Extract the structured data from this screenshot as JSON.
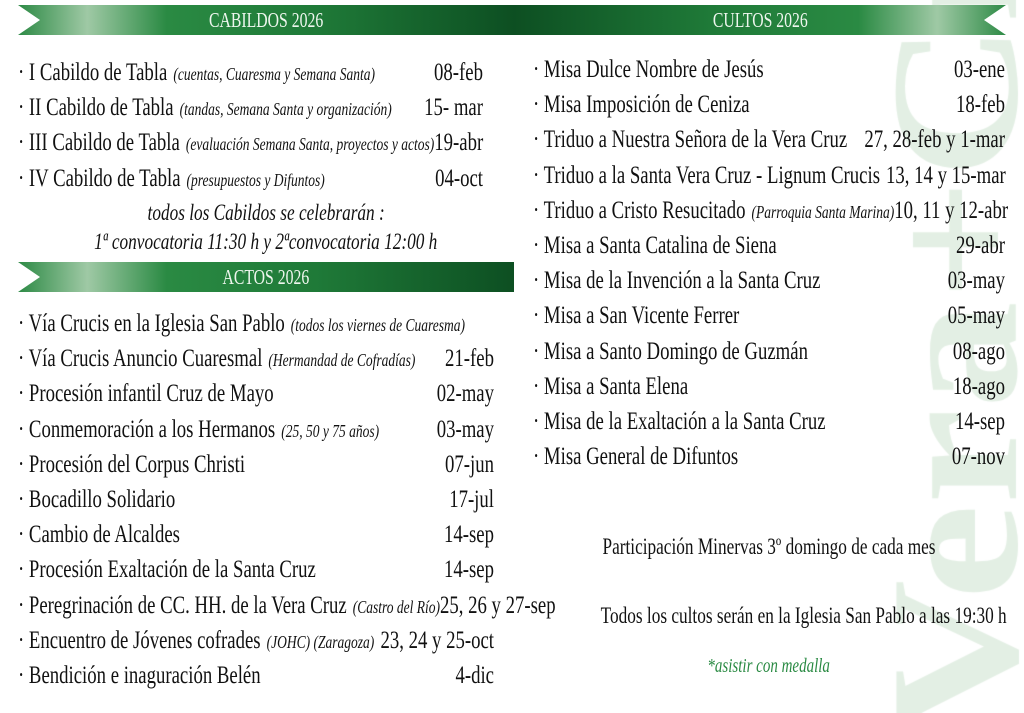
{
  "watermark": "Vera+Cruz",
  "colors": {
    "banner_green": "#1f7a38",
    "watermark": "#e3efe4",
    "accent_note": "#2a8a43"
  },
  "cabildos": {
    "title": "CABILDOS 2026",
    "items": [
      {
        "name": "· I Cabildo de Tabla",
        "detail": "(cuentas, Cuaresma y Semana Santa)",
        "date": "08-feb"
      },
      {
        "name": "· II Cabildo de Tabla",
        "detail": "(tandas, Semana Santa  y organización)",
        "date": "15- mar"
      },
      {
        "name": "· III Cabildo de Tabla",
        "detail": "(evaluación Semana Santa, proyectos y actos)",
        "date": "19-abr"
      },
      {
        "name": "· IV Cabildo de Tabla",
        "detail": "(presupuestos y Difuntos)",
        "date": "04-oct"
      }
    ],
    "note1": "todos los Cabildos se celebrarán :",
    "note2": "1ª convocatoria 11:30 h y 2ªconvocatoria 12:00 h"
  },
  "actos": {
    "title": "ACTOS 2026",
    "items": [
      {
        "name": "· Vía Crucis en la Iglesia San Pablo",
        "detail": "(todos los viernes de Cuaresma)",
        "date": ""
      },
      {
        "name": "· Vía Crucis Anuncio Cuaresmal",
        "detail": "(Hermandad de Cofradías)",
        "date": "21-feb"
      },
      {
        "name": "· Procesión infantil Cruz de Mayo",
        "detail": "",
        "date": "02-may"
      },
      {
        "name": "· Conmemoración a los Hermanos",
        "detail": "(25, 50 y 75 años)",
        "date": "03-may"
      },
      {
        "name": "· Procesión del Corpus Christi",
        "detail": "",
        "date": "07-jun"
      },
      {
        "name": "· Bocadillo Solidario",
        "detail": "",
        "date": "17-jul"
      },
      {
        "name": "· Cambio de Alcaldes",
        "detail": "",
        "date": "14-sep"
      },
      {
        "name": "· Procesión Exaltación de la Santa Cruz",
        "detail": "",
        "date": "14-sep"
      },
      {
        "name": "· Peregrinación de CC. HH. de la Vera Cruz",
        "detail": "(Castro del Río)",
        "date": "25, 26 y 27-sep"
      },
      {
        "name": "· Encuentro de Jóvenes cofrades",
        "detail": "(JOHC) (Zaragoza)",
        "date": "23, 24 y 25-oct"
      },
      {
        "name": "· Bendición e inaguración Belén",
        "detail": "",
        "date": "4-dic"
      }
    ]
  },
  "cultos": {
    "title": "CULTOS 2026",
    "items": [
      {
        "name": "· Misa Dulce Nombre de Jesús",
        "detail": "",
        "date": "03-ene"
      },
      {
        "name": "· Misa Imposición de Ceniza",
        "detail": "",
        "date": "18-feb"
      },
      {
        "name": "· Triduo a  Nuestra Señora de la Vera Cruz",
        "detail": "",
        "date": "27, 28-feb y 1-mar"
      },
      {
        "name": "· Triduo a la Santa Vera Cruz - Lignum Crucis",
        "detail": "",
        "date": "13, 14 y 15-mar"
      },
      {
        "name": "· Triduo a Cristo Resucitado",
        "detail": "(Parroquia Santa Marina)",
        "date": "10, 11 y 12-abr"
      },
      {
        "name": "· Misa a Santa Catalina de Siena",
        "detail": "",
        "date": "29-abr"
      },
      {
        "name": "· Misa de la Invención a la Santa Cruz",
        "detail": "",
        "date": "03-may"
      },
      {
        "name": "· Misa a San Vicente Ferrer",
        "detail": "",
        "date": "05-may"
      },
      {
        "name": "· Misa a Santo Domingo de Guzmán",
        "detail": "",
        "date": "08-ago"
      },
      {
        "name": "· Misa a Santa Elena",
        "detail": "",
        "date": "18-ago"
      },
      {
        "name": "· Misa de la Exaltación a la Santa Cruz",
        "detail": "",
        "date": "14-sep"
      },
      {
        "name": "· Misa General de Difuntos",
        "detail": "",
        "date": "07-nov"
      }
    ],
    "note1": "Participación Minervas 3º domingo de cada mes",
    "note2": "Todos los cultos serán en la Iglesia San Pablo a las 19:30 h",
    "note3": "*asistir con medalla"
  }
}
